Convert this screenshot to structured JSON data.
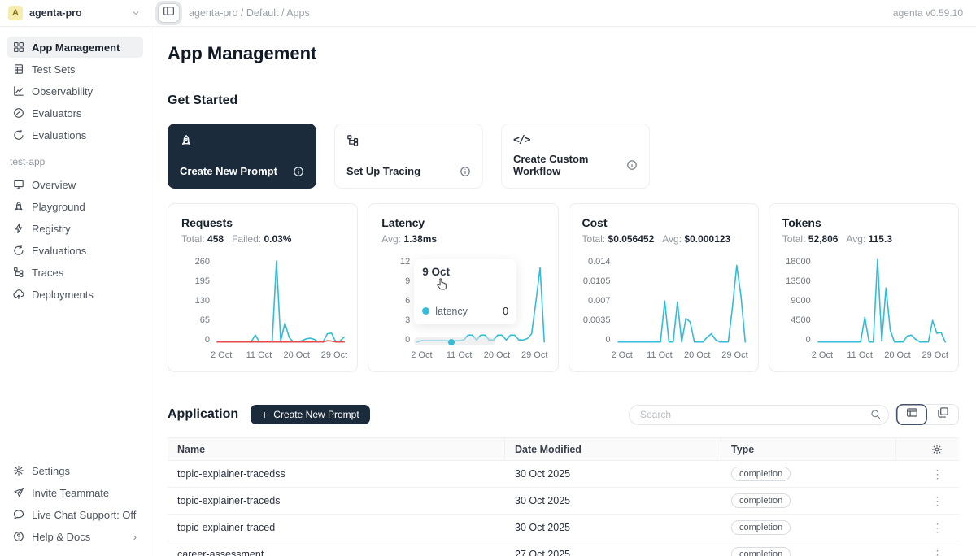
{
  "topbar": {
    "workspace_initial": "A",
    "workspace_name": "agenta-pro",
    "breadcrumb": "agenta-pro / Default / Apps",
    "version": "agenta v0.59.10"
  },
  "sidebar": {
    "main_items": [
      {
        "icon": "grid",
        "label": "App Management",
        "active": true
      },
      {
        "icon": "testsets",
        "label": "Test Sets"
      },
      {
        "icon": "observability",
        "label": "Observability"
      },
      {
        "icon": "evaluators",
        "label": "Evaluators"
      },
      {
        "icon": "evaluations",
        "label": "Evaluations"
      }
    ],
    "section_label": "test-app",
    "app_items": [
      {
        "icon": "overview",
        "label": "Overview"
      },
      {
        "icon": "rocket",
        "label": "Playground"
      },
      {
        "icon": "lightning",
        "label": "Registry"
      },
      {
        "icon": "evaluations",
        "label": "Evaluations"
      },
      {
        "icon": "tree",
        "label": "Traces"
      },
      {
        "icon": "cloud",
        "label": "Deployments"
      }
    ],
    "footer_items": [
      {
        "icon": "gear",
        "label": "Settings"
      },
      {
        "icon": "plane",
        "label": "Invite Teammate"
      },
      {
        "icon": "chat",
        "label": "Live Chat Support: Off"
      },
      {
        "icon": "help",
        "label": "Help & Docs",
        "chevron": true
      }
    ]
  },
  "main": {
    "page_title": "App Management",
    "get_started_title": "Get Started",
    "get_started_cards": [
      {
        "icon": "rocket",
        "label": "Create New Prompt",
        "dark": true
      },
      {
        "icon": "tree",
        "label": "Set Up Tracing"
      },
      {
        "icon": "code",
        "label": "Create Custom Workflow"
      }
    ],
    "application": {
      "title": "Application",
      "create_button_label": "Create New Prompt",
      "search_placeholder": "Search",
      "columns": [
        "Name",
        "Date Modified",
        "Type"
      ],
      "rows": [
        {
          "name": "topic-explainer-tracedss",
          "date": "30 Oct 2025",
          "type": "completion"
        },
        {
          "name": "topic-explainer-traceds",
          "date": "30 Oct 2025",
          "type": "completion"
        },
        {
          "name": "topic-explainer-traced",
          "date": "30 Oct 2025",
          "type": "completion"
        },
        {
          "name": "career-assessment",
          "date": "27 Oct 2025",
          "type": "completion"
        }
      ]
    }
  },
  "tooltip": {
    "title": "9 Oct",
    "series_label": "latency",
    "value": "0"
  },
  "colors": {
    "accent_dark": "#1b2b3c",
    "chart_line": "#33bcd8",
    "failed_line": "#e8484b",
    "active_item_bg": "#f0f1f3"
  },
  "chart_data": [
    {
      "type": "line",
      "title": "Requests",
      "stats": [
        {
          "label": "Total:",
          "value": "458"
        },
        {
          "label": "Failed:",
          "value": "0.03%"
        }
      ],
      "yticks": [
        0,
        65,
        130,
        195,
        260
      ],
      "xticks": [
        {
          "label": "2 Oct",
          "day": 2
        },
        {
          "label": "11 Oct",
          "day": 11
        },
        {
          "label": "20 Oct",
          "day": 20
        },
        {
          "label": "29 Oct",
          "day": 29
        }
      ],
      "days": 31,
      "series": [
        {
          "name": "requests",
          "color": "#33bcd8",
          "values": [
            0,
            0,
            0,
            0,
            0,
            0,
            0,
            0,
            0,
            22,
            0,
            0,
            0,
            3,
            255,
            4,
            60,
            14,
            0,
            0,
            4,
            10,
            12,
            8,
            0,
            0,
            26,
            28,
            0,
            3,
            16
          ]
        },
        {
          "name": "failed",
          "color": "#e8484b",
          "values": [
            0,
            0,
            0,
            0,
            0,
            0,
            0,
            0,
            0,
            0,
            0,
            0,
            0,
            0,
            0,
            0,
            0,
            0,
            0,
            0,
            0,
            0,
            0,
            0,
            0,
            0,
            4,
            3,
            0,
            0,
            0
          ]
        }
      ]
    },
    {
      "type": "line",
      "title": "Latency",
      "stats": [
        {
          "label": "Avg:",
          "value": "1.38ms"
        }
      ],
      "yticks": [
        0,
        3,
        6,
        9,
        12
      ],
      "xticks": [
        {
          "label": "2 Oct",
          "day": 2
        },
        {
          "label": "11 Oct",
          "day": 11
        },
        {
          "label": "20 Oct",
          "day": 20
        },
        {
          "label": "29 Oct",
          "day": 29
        }
      ],
      "days": 31,
      "marker": {
        "day": 9,
        "value": 0
      },
      "has_tooltip": true,
      "has_hover_band": true,
      "series": [
        {
          "name": "latency",
          "color": "#33bcd8",
          "values": [
            0,
            0.2,
            0.2,
            0.2,
            0.2,
            0.2,
            0.2,
            0.2,
            0,
            0.2,
            0.2,
            0.3,
            1,
            1,
            0.3,
            1,
            1,
            0.3,
            0.3,
            1,
            1,
            0.3,
            1,
            1,
            0.3,
            0.3,
            0.5,
            1.2,
            5.8,
            10.8,
            0
          ]
        }
      ]
    },
    {
      "type": "line",
      "title": "Cost",
      "stats": [
        {
          "label": "Total:",
          "value": "$0.056452"
        },
        {
          "label": "Avg:",
          "value": "$0.000123"
        }
      ],
      "yticks": [
        0,
        0.0035,
        0.007,
        0.0105,
        0.014
      ],
      "xticks": [
        {
          "label": "2 Oct",
          "day": 2
        },
        {
          "label": "11 Oct",
          "day": 11
        },
        {
          "label": "20 Oct",
          "day": 20
        },
        {
          "label": "29 Oct",
          "day": 29
        }
      ],
      "days": 31,
      "series": [
        {
          "name": "cost",
          "color": "#33bcd8",
          "values": [
            0,
            0,
            0,
            0,
            0,
            0,
            0,
            0,
            0,
            0,
            0,
            0.007,
            0,
            0,
            0.0068,
            0,
            0.004,
            0.0034,
            0,
            0,
            0,
            0.0008,
            0.0014,
            0.0004,
            0,
            0,
            0,
            0.006,
            0.013,
            0.0078,
            0
          ]
        }
      ]
    },
    {
      "type": "line",
      "title": "Tokens",
      "stats": [
        {
          "label": "Total:",
          "value": "52,806"
        },
        {
          "label": "Avg:",
          "value": "115.3"
        }
      ],
      "yticks": [
        0,
        4500,
        9000,
        13500,
        18000
      ],
      "xticks": [
        {
          "label": "2 Oct",
          "day": 2
        },
        {
          "label": "11 Oct",
          "day": 11
        },
        {
          "label": "20 Oct",
          "day": 20
        },
        {
          "label": "29 Oct",
          "day": 29
        }
      ],
      "days": 31,
      "series": [
        {
          "name": "tokens",
          "color": "#33bcd8",
          "values": [
            0,
            0,
            0,
            0,
            0,
            0,
            0,
            0,
            0,
            0,
            0,
            5400,
            0,
            0,
            18000,
            200,
            11800,
            2600,
            0,
            0,
            0,
            1300,
            1500,
            600,
            0,
            0,
            0,
            4700,
            1900,
            2100,
            0
          ]
        }
      ]
    }
  ]
}
